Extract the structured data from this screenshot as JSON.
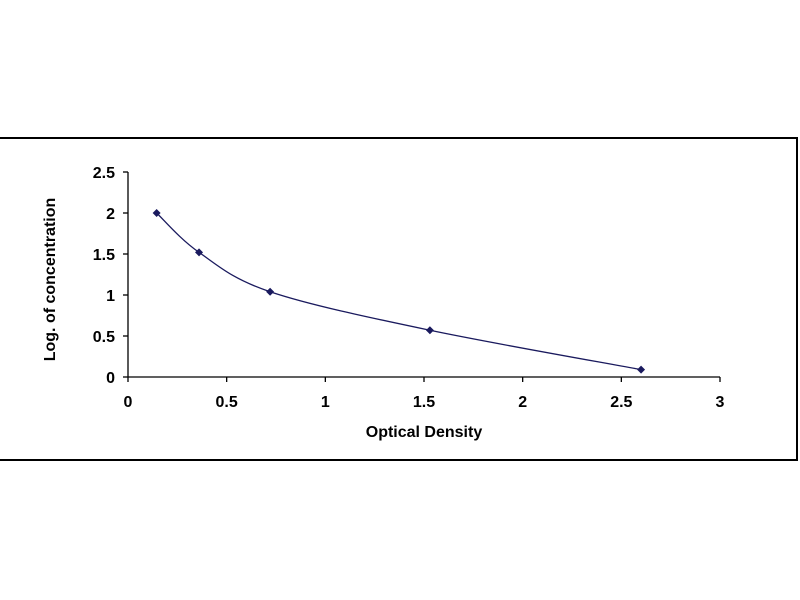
{
  "chart_data": {
    "type": "scatter",
    "title": "",
    "xlabel": "Optical Density",
    "ylabel": "Log. of concentration",
    "xlim": [
      0,
      3
    ],
    "ylim": [
      0,
      2.5
    ],
    "xticks": [
      0,
      0.5,
      1,
      1.5,
      2,
      2.5,
      3
    ],
    "yticks": [
      0,
      0.5,
      1,
      1.5,
      2,
      2.5
    ],
    "xtick_labels": [
      "0",
      "0.5",
      "1",
      "1.5",
      "2",
      "2.5",
      "3"
    ],
    "ytick_labels": [
      "0",
      "0.5",
      "1",
      "1.5",
      "2",
      "2.5"
    ],
    "grid": false,
    "legend": "none",
    "marker": "diamond",
    "marker_color": "#1a1a5e",
    "line_color": "#1a1a5e",
    "smooth_curve": true,
    "series": [
      {
        "x": [
          0.145,
          0.36,
          0.72,
          1.53,
          2.6
        ],
        "y": [
          2.0,
          1.52,
          1.04,
          0.57,
          0.09
        ]
      }
    ]
  }
}
